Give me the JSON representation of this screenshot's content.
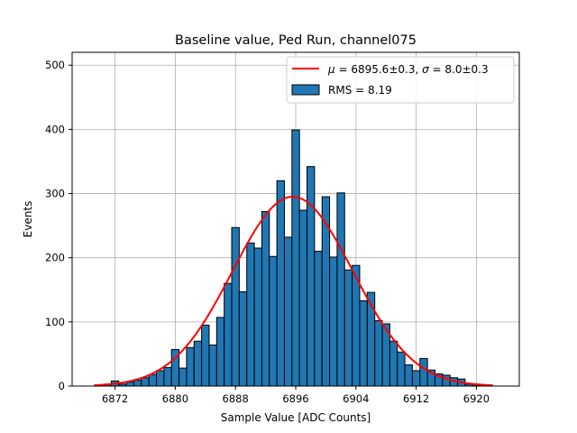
{
  "chart_data": {
    "type": "bar",
    "title": "Baseline value, Ped Run, channel075",
    "xlabel": "Sample Value [ADC Counts]",
    "ylabel": "Events",
    "xlim": [
      6866.3,
      6925.7
    ],
    "ylim": [
      0,
      520
    ],
    "xticks": [
      6872,
      6880,
      6888,
      6896,
      6904,
      6912,
      6920
    ],
    "yticks": [
      0,
      100,
      200,
      300,
      400,
      500
    ],
    "grid": true,
    "legend_position": "top-right",
    "bin_width": 1,
    "bin_start": 6869.5,
    "values": [
      1,
      3,
      8,
      3,
      6,
      9,
      13,
      18,
      24,
      29,
      57,
      28,
      60,
      70,
      95,
      64,
      107,
      160,
      247,
      147,
      223,
      215,
      272,
      202,
      320,
      232,
      399,
      274,
      342,
      210,
      295,
      201,
      301,
      181,
      188,
      133,
      146,
      102,
      97,
      70,
      53,
      33,
      24,
      43,
      25,
      19,
      17,
      13,
      11,
      3,
      1
    ],
    "fit": {
      "mu": 6895.6,
      "sigma": 8.0,
      "amplitude": 295,
      "x_range": [
        6869.2,
        6922.2
      ]
    },
    "series": [
      {
        "name": "$\\mu = 6895.6\\pm0.3$, $\\sigma = 8.0\\pm0.3$",
        "color": "#ff0000",
        "kind": "line"
      },
      {
        "name": "RMS = 8.19",
        "color": "#1f77b4",
        "kind": "bar"
      }
    ]
  },
  "legend": {
    "fit_prefix_mu": "μ",
    "fit_mid": " = 6895.6±0.3, ",
    "fit_prefix_sigma": "σ",
    "fit_end": " = 8.0±0.3",
    "rms_label": "RMS = 8.19"
  }
}
